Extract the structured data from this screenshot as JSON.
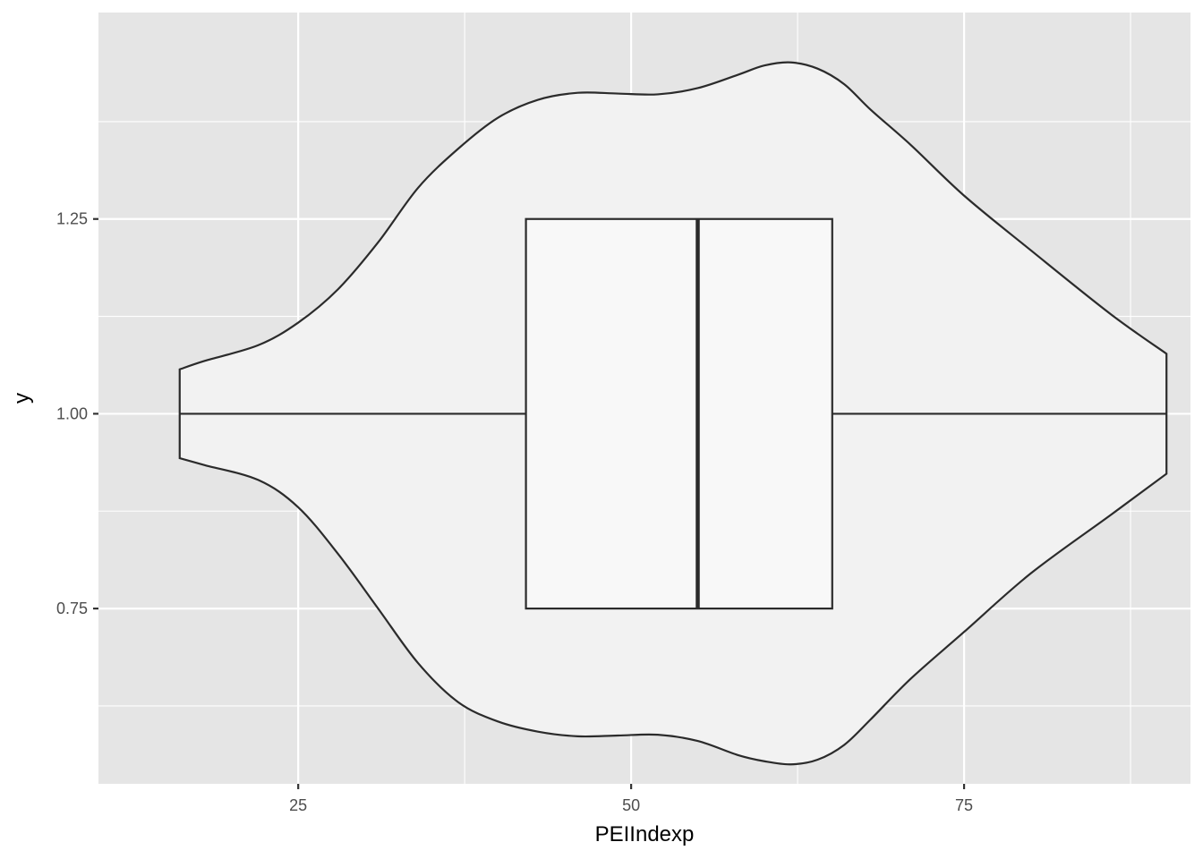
{
  "chart_data": {
    "type": "violin",
    "orientation": "horizontal",
    "xlabel": "PEIIndexp",
    "ylabel": "y",
    "xlim": [
      10,
      92
    ],
    "ylim": [
      0.525,
      1.515
    ],
    "x_ticks": [
      {
        "value": 25,
        "label": "25"
      },
      {
        "value": 50,
        "label": "50"
      },
      {
        "value": 75,
        "label": "75"
      }
    ],
    "y_ticks": [
      {
        "value": 0.75,
        "label": "0.75"
      },
      {
        "value": 1.0,
        "label": "1.00"
      },
      {
        "value": 1.25,
        "label": "1.25"
      }
    ],
    "x_minor_grid": [
      37.5,
      62.5,
      87.5
    ],
    "y_minor_grid": [
      0.625,
      0.875,
      1.125,
      1.375
    ],
    "grid": true,
    "background": "#e5e5e5",
    "grid_color": "#ffffff",
    "violin": {
      "center": 1.0,
      "fill": "#f2f2f2",
      "stroke": "#2b2b2b",
      "outline": [
        [
          16.1,
          0.057
        ],
        [
          18.0,
          0.068
        ],
        [
          22.0,
          0.088
        ],
        [
          25.0,
          0.117
        ],
        [
          28.0,
          0.16
        ],
        [
          31.0,
          0.22
        ],
        [
          34.0,
          0.29
        ],
        [
          37.0,
          0.34
        ],
        [
          40.0,
          0.38
        ],
        [
          43.0,
          0.403
        ],
        [
          46.0,
          0.412
        ],
        [
          49.0,
          0.411
        ],
        [
          52.0,
          0.41
        ],
        [
          55.0,
          0.418
        ],
        [
          58.0,
          0.435
        ],
        [
          60.0,
          0.447
        ],
        [
          62.0,
          0.451
        ],
        [
          64.0,
          0.443
        ],
        [
          66.0,
          0.423
        ],
        [
          68.0,
          0.39
        ],
        [
          71.0,
          0.345
        ],
        [
          75.0,
          0.28
        ],
        [
          80.0,
          0.21
        ],
        [
          86.0,
          0.128
        ],
        [
          90.2,
          0.077
        ]
      ],
      "outline_lower": [
        [
          16.1,
          0.057
        ],
        [
          18.0,
          0.066
        ],
        [
          22.0,
          0.085
        ],
        [
          25.0,
          0.12
        ],
        [
          28.0,
          0.18
        ],
        [
          31.0,
          0.25
        ],
        [
          34.0,
          0.32
        ],
        [
          37.0,
          0.37
        ],
        [
          40.0,
          0.395
        ],
        [
          43.0,
          0.408
        ],
        [
          46.0,
          0.414
        ],
        [
          49.0,
          0.413
        ],
        [
          52.0,
          0.412
        ],
        [
          55.0,
          0.42
        ],
        [
          58.0,
          0.438
        ],
        [
          60.0,
          0.446
        ],
        [
          62.0,
          0.45
        ],
        [
          64.0,
          0.444
        ],
        [
          66.0,
          0.425
        ],
        [
          68.0,
          0.392
        ],
        [
          71.0,
          0.34
        ],
        [
          75.0,
          0.28
        ],
        [
          80.0,
          0.205
        ],
        [
          86.0,
          0.13
        ],
        [
          90.2,
          0.077
        ]
      ]
    },
    "boxplot": {
      "whisker_low": 16.1,
      "q1": 42.1,
      "median": 55.0,
      "q3": 65.1,
      "whisker_high": 90.2,
      "box_ymin": 0.75,
      "box_ymax": 1.25,
      "fill": "#f8f8f8",
      "stroke": "#2b2b2b"
    }
  }
}
